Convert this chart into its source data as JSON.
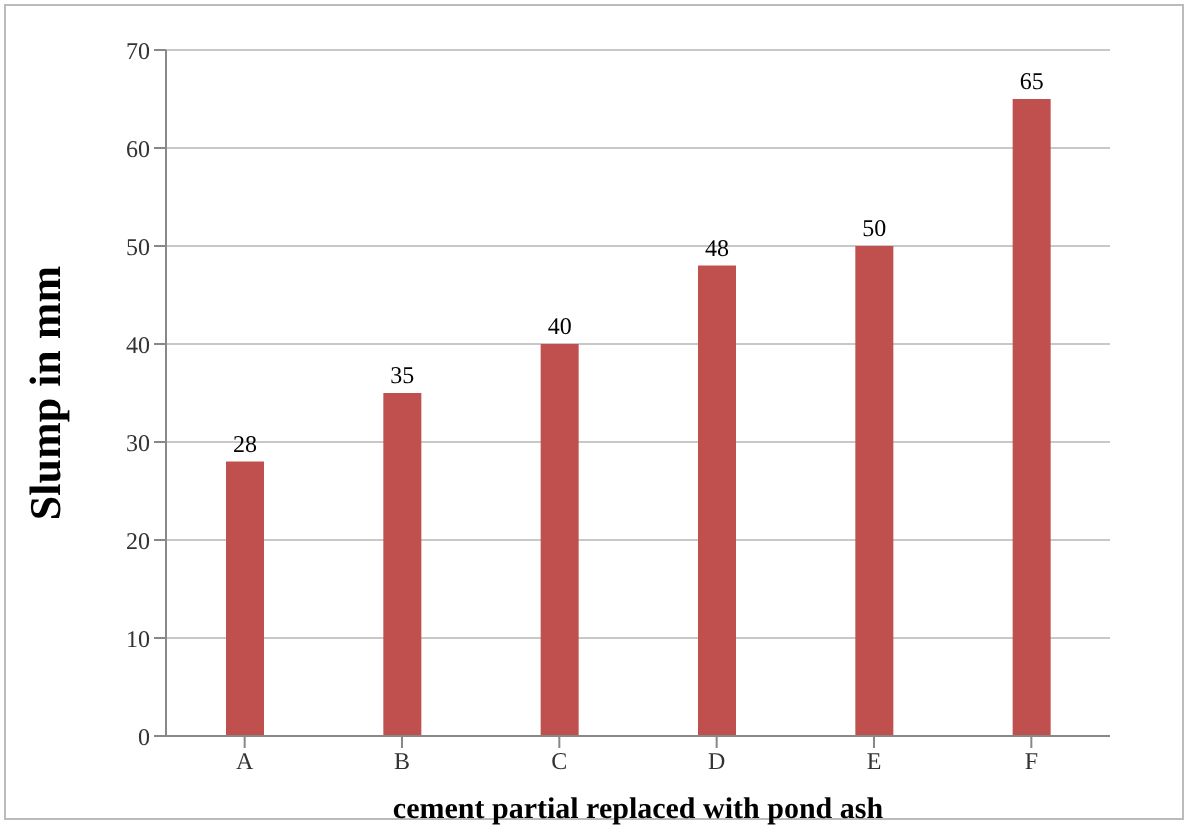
{
  "chart_data": {
    "type": "bar",
    "xlabel": "cement partial replaced with pond ash",
    "ylabel": "Slump in mm",
    "categories": [
      "A",
      "B",
      "C",
      "D",
      "E",
      "F"
    ],
    "values": [
      28,
      35,
      40,
      48,
      50,
      65
    ],
    "color": "#c0504d",
    "ylim": [
      0,
      70
    ],
    "yticks": [
      0,
      10,
      20,
      30,
      40,
      50,
      60,
      70
    ],
    "grid": "y",
    "data_labels": true
  }
}
